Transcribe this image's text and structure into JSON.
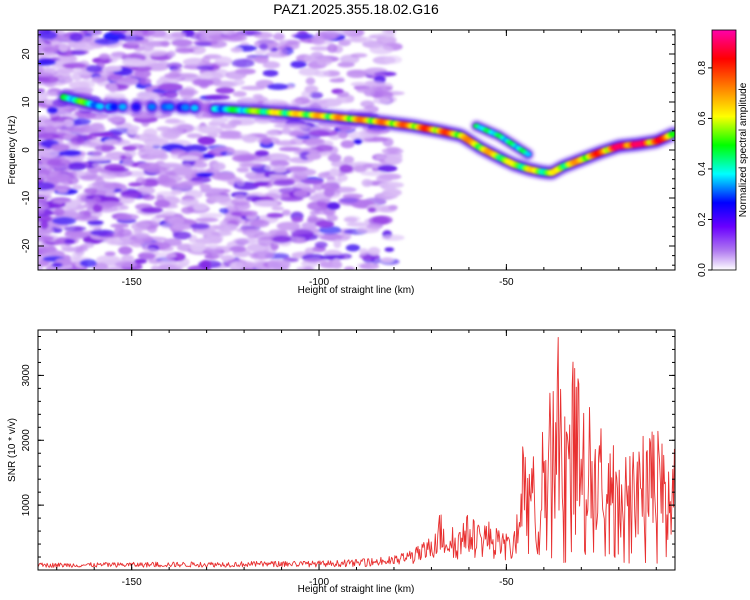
{
  "title": "PAZ1.2025.355.18.02.G16",
  "chart_data": [
    {
      "type": "heatmap",
      "name": "spectrogram",
      "xlabel": "Height of straight line (km)",
      "ylabel": "Frequency (Hz)",
      "xlim": [
        -175,
        -5
      ],
      "ylim": [
        -25,
        25
      ],
      "xticks": [
        -150,
        -100,
        -50
      ],
      "yticks": [
        -20,
        -10,
        0,
        10,
        20
      ],
      "colorbar": {
        "label": "Normalized spectral amplitude",
        "range": [
          0,
          0.95
        ],
        "ticks": [
          0.0,
          0.2,
          0.4,
          0.6,
          0.8
        ],
        "colormap": [
          "#ffffff",
          "#8a2be2",
          "#0000ff",
          "#00ffff",
          "#00ff00",
          "#ffff00",
          "#ff8000",
          "#ff0000",
          "#ff00aa"
        ]
      },
      "ridge": {
        "x": [
          -168,
          -163,
          -158,
          -140,
          -125,
          -115,
          -105,
          -95,
          -85,
          -75,
          -68,
          -62,
          -57,
          -52,
          -48,
          -44,
          -41,
          -38,
          -35,
          -30,
          -25,
          -20,
          -15,
          -10,
          -5
        ],
        "y": [
          11,
          10,
          9,
          9,
          8.5,
          8,
          7.5,
          6.8,
          6,
          5,
          4,
          3,
          0.5,
          -1.5,
          -3,
          -4,
          -4.5,
          -4.8,
          -3.5,
          -2,
          -0.5,
          0.8,
          1.2,
          1.8,
          3.5
        ],
        "amplitude": [
          0.4,
          0.45,
          0.3,
          0.25,
          0.35,
          0.5,
          0.55,
          0.6,
          0.62,
          0.65,
          0.7,
          0.6,
          0.6,
          0.55,
          0.5,
          0.55,
          0.5,
          0.5,
          0.55,
          0.6,
          0.7,
          0.8,
          0.9,
          0.75,
          0.6
        ]
      },
      "branch": {
        "x": [
          -58,
          -55,
          -52,
          -49,
          -46,
          -44
        ],
        "y": [
          5,
          4,
          3,
          1.5,
          0,
          -1
        ]
      }
    },
    {
      "type": "line",
      "name": "snr",
      "xlabel": "Height of straight line (km)",
      "ylabel": "SNR (10 * v/v)",
      "xlim": [
        -175,
        -5
      ],
      "ylim": [
        0,
        3700
      ],
      "xticks": [
        -150,
        -100,
        -50
      ],
      "yticks": [
        1000,
        2000,
        3000
      ],
      "color": "#e83030",
      "envelope": {
        "x": [
          -175,
          -150,
          -125,
          -100,
          -90,
          -80,
          -75,
          -71,
          -68,
          -66,
          -63,
          -60,
          -58,
          -55,
          -52,
          -50,
          -48,
          -46,
          -44,
          -42,
          -40,
          -38,
          -36,
          -34,
          -32,
          -30,
          -28,
          -25,
          -22,
          -18,
          -14,
          -10,
          -8,
          -5
        ],
        "y": [
          80,
          90,
          100,
          110,
          130,
          180,
          280,
          400,
          850,
          650,
          550,
          800,
          650,
          700,
          550,
          500,
          450,
          1800,
          1500,
          1700,
          2000,
          2600,
          3600,
          2500,
          3300,
          2400,
          2300,
          2000,
          1800,
          1600,
          1900,
          2100,
          1700,
          1800
        ]
      }
    }
  ]
}
